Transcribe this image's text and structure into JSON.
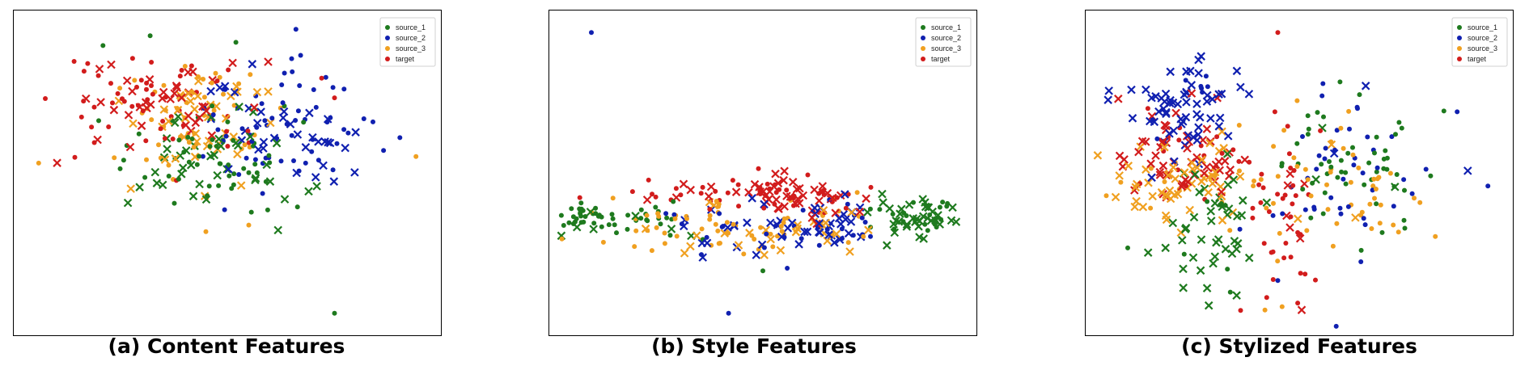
{
  "colors": {
    "source_1": "#1e7a1e",
    "source_2": "#1020b0",
    "source_3": "#f0a020",
    "target": "#d21c1c"
  },
  "legend_labels": [
    "source_1",
    "source_2",
    "source_3",
    "target"
  ],
  "captions": [
    "(a) Content Features",
    "(b) Style Features",
    "(c) Stylized Features"
  ],
  "chart_data": [
    {
      "type": "scatter",
      "title": "(a) Content Features",
      "xlabel": "",
      "ylabel": "",
      "xlim": [
        0,
        100
      ],
      "ylim": [
        0,
        100
      ],
      "grid": false,
      "axes_ticks": false,
      "legend_placement": "top-right",
      "series": [
        {
          "name": "source_1",
          "marker_note": "dots and crosses",
          "clusters": [
            {
              "cx": 46,
              "cy": 52,
              "sx": 11,
              "sy": 8,
              "n": 90,
              "dots": 0.55
            }
          ],
          "extra_points": [
            [
              21,
              89
            ],
            [
              32,
              92
            ],
            [
              52,
              90
            ],
            [
              20,
              66
            ],
            [
              75,
              7
            ]
          ]
        },
        {
          "name": "source_2",
          "marker_note": "dots and crosses",
          "clusters": [
            {
              "cx": 64,
              "cy": 62,
              "sx": 9,
              "sy": 9,
              "n": 95,
              "dots": 0.55
            }
          ],
          "extra_points": [
            [
              66,
              94
            ],
            [
              65,
              85
            ]
          ]
        },
        {
          "name": "source_3",
          "marker_note": "dots and crosses",
          "clusters": [
            {
              "cx": 43,
              "cy": 66,
              "sx": 9,
              "sy": 10,
              "n": 85,
              "dots": 0.55
            }
          ],
          "extra_points": [
            [
              6,
              53
            ],
            [
              94,
              55
            ],
            [
              45,
              32
            ],
            [
              55,
              34
            ]
          ]
        },
        {
          "name": "target",
          "marker_note": "dots and crosses",
          "clusters": [
            {
              "cx": 33,
              "cy": 71,
              "sx": 10,
              "sy": 9,
              "n": 90,
              "dots": 0.55
            }
          ],
          "extra_points": [
            [
              75,
              73
            ],
            [
              72,
              79
            ]
          ]
        }
      ]
    },
    {
      "type": "scatter",
      "title": "(b) Style Features",
      "xlabel": "",
      "ylabel": "",
      "xlim": [
        0,
        100
      ],
      "ylim": [
        0,
        100
      ],
      "grid": false,
      "axes_ticks": false,
      "legend_placement": "top-right",
      "series": [
        {
          "name": "source_1",
          "marker_note": "dots and crosses",
          "clusters": [
            {
              "cx": 9,
              "cy": 36,
              "sx": 5,
              "sy": 2,
              "n": 30,
              "dots": 0.9
            },
            {
              "cx": 21,
              "cy": 35,
              "sx": 6,
              "sy": 3,
              "n": 25,
              "dots": 0.9
            },
            {
              "cx": 86,
              "cy": 37,
              "sx": 5,
              "sy": 3.5,
              "n": 60,
              "dots": 0.4
            }
          ],
          "extra_points": [
            [
              50,
              20
            ]
          ]
        },
        {
          "name": "source_2",
          "marker_note": "dots and crosses",
          "clusters": [
            {
              "cx": 50,
              "cy": 33,
              "sx": 11,
              "sy": 5,
              "n": 45,
              "dots": 0.5
            },
            {
              "cx": 68,
              "cy": 36,
              "sx": 5,
              "sy": 5,
              "n": 30,
              "dots": 0.4
            }
          ],
          "extra_points": [
            [
              10,
              93
            ],
            [
              42,
              7
            ]
          ]
        },
        {
          "name": "source_3",
          "marker_note": "dots and crosses",
          "clusters": [
            {
              "cx": 33,
              "cy": 33,
              "sx": 12,
              "sy": 5,
              "n": 45,
              "dots": 0.7
            },
            {
              "cx": 56,
              "cy": 32,
              "sx": 8,
              "sy": 4,
              "n": 40,
              "dots": 0.5
            }
          ],
          "extra_points": [
            [
              72,
              44
            ],
            [
              10,
              38
            ]
          ]
        },
        {
          "name": "target",
          "marker_note": "dots and crosses",
          "clusters": [
            {
              "cx": 34,
              "cy": 44,
              "sx": 12,
              "sy": 2.5,
              "n": 35,
              "dots": 0.7
            },
            {
              "cx": 54,
              "cy": 45,
              "sx": 5,
              "sy": 3,
              "n": 30,
              "dots": 0.3
            },
            {
              "cx": 64,
              "cy": 41,
              "sx": 5,
              "sy": 3,
              "n": 30,
              "dots": 0.5
            }
          ],
          "extra_points": []
        }
      ]
    },
    {
      "type": "scatter",
      "title": "(c) Stylized Features",
      "xlabel": "",
      "ylabel": "",
      "xlim": [
        0,
        100
      ],
      "ylim": [
        0,
        100
      ],
      "grid": false,
      "axes_ticks": false,
      "legend_placement": "top-right",
      "series": [
        {
          "name": "source_1",
          "marker_note": "dots and crosses",
          "clusters": [
            {
              "cx": 29,
              "cy": 33,
              "sx": 5,
              "sy": 10,
              "n": 50,
              "dots": 0.1
            },
            {
              "cx": 63,
              "cy": 53,
              "sx": 10,
              "sy": 10,
              "n": 55,
              "dots": 0.9
            }
          ],
          "extra_points": [
            [
              10,
              27
            ]
          ]
        },
        {
          "name": "source_2",
          "marker_note": "dots and crosses",
          "clusters": [
            {
              "cx": 23,
              "cy": 70,
              "sx": 7,
              "sy": 7,
              "n": 70,
              "dots": 0.1
            },
            {
              "cx": 58,
              "cy": 52,
              "sx": 11,
              "sy": 12,
              "n": 45,
              "dots": 0.95
            }
          ],
          "extra_points": [
            [
              94,
              46
            ],
            [
              45,
              17
            ]
          ]
        },
        {
          "name": "source_3",
          "marker_note": "dots and crosses",
          "clusters": [
            {
              "cx": 23,
              "cy": 47,
              "sx": 9,
              "sy": 7,
              "n": 60,
              "dots": 0.2
            },
            {
              "cx": 56,
              "cy": 45,
              "sx": 12,
              "sy": 11,
              "n": 55,
              "dots": 0.9
            }
          ],
          "extra_points": [
            [
              42,
              8
            ],
            [
              46,
              9
            ],
            [
              5,
              43
            ]
          ]
        },
        {
          "name": "target",
          "marker_note": "dots and crosses",
          "clusters": [
            {
              "cx": 25,
              "cy": 56,
              "sx": 8,
              "sy": 7,
              "n": 70,
              "dots": 0.2
            },
            {
              "cx": 46,
              "cy": 37,
              "sx": 5,
              "sy": 13,
              "n": 45,
              "dots": 0.8
            }
          ],
          "extra_points": [
            [
              45,
              93
            ]
          ]
        }
      ]
    }
  ]
}
